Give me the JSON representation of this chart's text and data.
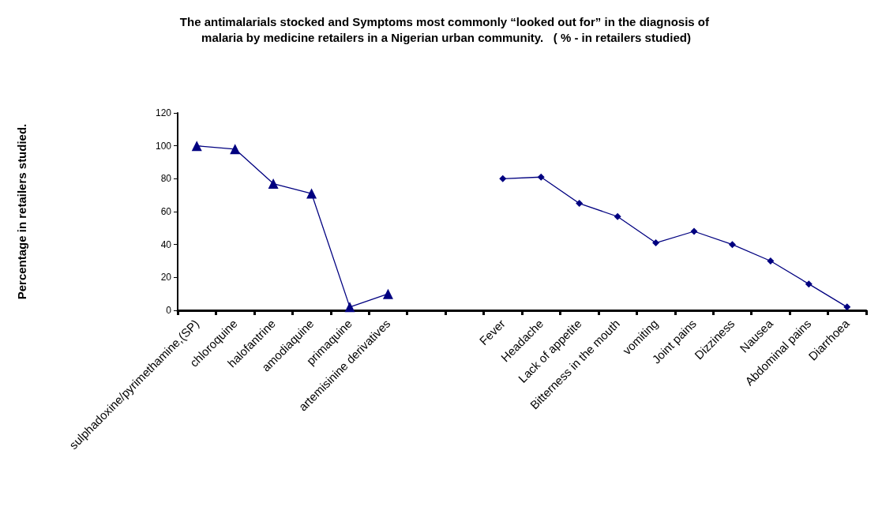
{
  "chart_data": {
    "type": "line",
    "title": "The antimalarials stocked and Symptoms most commonly “looked out for” in the diagnosis of malaria by medicine retailers in a Nigerian urban community.   ( % - in retailers studied)",
    "ylabel": "Percentage in retailers studied.",
    "categories": [
      "sulphadoxine/pyrimethamine,(SP)",
      "chloroquine",
      "halofantrine",
      "amodiaquine",
      "primaquine",
      "artemisinine derivatives",
      null,
      null,
      "Fever",
      "Headache",
      "Lack of appetite",
      "Bitterness in the mouth",
      "vomiting",
      "Joint pains",
      "Dizziness",
      "Nausea",
      "Abdominal pains",
      "Diarrhoea"
    ],
    "series": [
      {
        "color": "#000080",
        "marker": "triangle",
        "values": [
          100,
          98,
          77,
          71,
          2,
          10,
          null,
          null,
          null,
          null,
          null,
          null,
          null,
          null,
          null,
          null,
          null,
          null
        ]
      },
      {
        "color": "#000080",
        "marker": "diamond",
        "values": [
          null,
          null,
          null,
          null,
          null,
          null,
          null,
          null,
          80,
          81,
          65,
          57,
          41,
          48,
          40,
          30,
          16,
          2
        ]
      }
    ],
    "ylim": [
      0,
      120
    ],
    "yticks": [
      0,
      20,
      40,
      60,
      80,
      100,
      120
    ],
    "grid": false,
    "line_style": "solid"
  }
}
